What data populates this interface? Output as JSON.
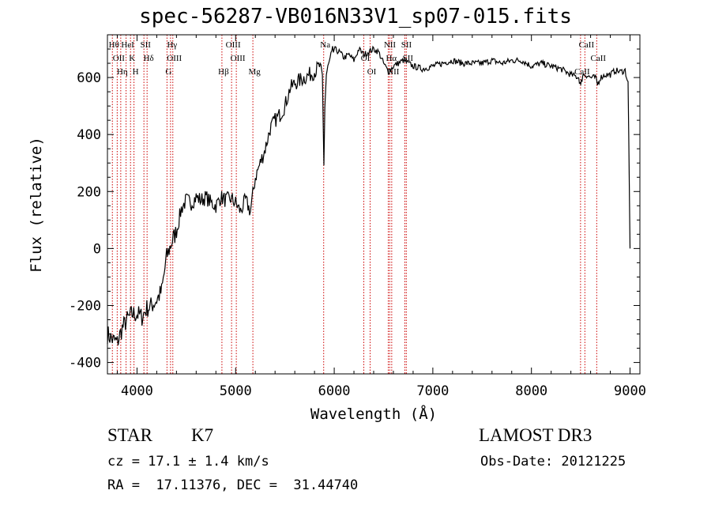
{
  "chart_data": {
    "type": "line",
    "title": "spec-56287-VB016N33V1_sp07-015.fits",
    "xlabel": "Wavelength (Å)",
    "ylabel": "Flux (relative)",
    "xlim": [
      3700,
      9100
    ],
    "ylim": [
      -440,
      750
    ],
    "xticks": [
      4000,
      5000,
      6000,
      7000,
      8000,
      9000
    ],
    "yticks": [
      -400,
      -200,
      0,
      200,
      400,
      600
    ],
    "grid": false,
    "series": [
      {
        "x": [
          3700,
          3750,
          3800,
          3850,
          3900,
          3950,
          4000,
          4050,
          4100,
          4150,
          4200,
          4250,
          4300,
          4350,
          4400,
          4450,
          4500,
          4550,
          4600,
          4650,
          4700,
          4750,
          4800,
          4850,
          4900,
          4950,
          5000,
          5050,
          5100,
          5150,
          5200,
          5250,
          5300,
          5350,
          5400,
          5450,
          5500,
          5550,
          5600,
          5650,
          5700,
          5750,
          5800,
          5850,
          5880,
          5895,
          5905,
          5920,
          5950,
          6000,
          6050,
          6100,
          6150,
          6200,
          6250,
          6300,
          6350,
          6400,
          6450,
          6500,
          6550,
          6600,
          6650,
          6700,
          6750,
          6800,
          6900,
          7000,
          7100,
          7200,
          7300,
          7400,
          7500,
          7600,
          7700,
          7800,
          7900,
          8000,
          8100,
          8200,
          8300,
          8400,
          8480,
          8500,
          8520,
          8550,
          8600,
          8650,
          8670,
          8700,
          8750,
          8800,
          8850,
          8900,
          8950,
          8980,
          9000
        ],
        "y": [
          -300,
          -320,
          -330,
          -280,
          -250,
          -230,
          -230,
          -240,
          -210,
          -200,
          -180,
          -150,
          -30,
          20,
          60,
          140,
          170,
          160,
          180,
          170,
          180,
          160,
          150,
          180,
          170,
          175,
          160,
          130,
          170,
          130,
          250,
          300,
          350,
          420,
          450,
          470,
          500,
          560,
          580,
          590,
          600,
          610,
          620,
          640,
          600,
          300,
          500,
          610,
          650,
          700,
          690,
          670,
          680,
          660,
          700,
          680,
          690,
          700,
          690,
          650,
          620,
          640,
          650,
          660,
          650,
          640,
          630,
          640,
          650,
          660,
          650,
          650,
          650,
          660,
          650,
          660,
          660,
          640,
          650,
          640,
          630,
          610,
          600,
          570,
          610,
          610,
          600,
          600,
          575,
          600,
          610,
          610,
          625,
          620,
          625,
          580,
          0
        ]
      }
    ],
    "line_markers": [
      {
        "wl": 3750,
        "label": "Hθ"
      },
      {
        "wl": 3799,
        "label": "OII"
      },
      {
        "wl": 3835,
        "label": "Hη"
      },
      {
        "wl": 3889,
        "label": "HeI"
      },
      {
        "wl": 3934,
        "label": "K"
      },
      {
        "wl": 3969,
        "label": "H"
      },
      {
        "wl": 4070,
        "label": "SII"
      },
      {
        "wl": 4102,
        "label": "Hδ"
      },
      {
        "wl": 4304,
        "label": "G"
      },
      {
        "wl": 4340,
        "label": "Hγ"
      },
      {
        "wl": 4363,
        "label": "OIII"
      },
      {
        "wl": 4861,
        "label": "Hβ"
      },
      {
        "wl": 4959,
        "label": "OIII"
      },
      {
        "wl": 5007,
        "label": "OIII"
      },
      {
        "wl": 5175,
        "label": "Mg"
      },
      {
        "wl": 5893,
        "label": "Na"
      },
      {
        "wl": 6300,
        "label": "OI"
      },
      {
        "wl": 6364,
        "label": "OI"
      },
      {
        "wl": 6548,
        "label": "NII"
      },
      {
        "wl": 6563,
        "label": "Hα"
      },
      {
        "wl": 6583,
        "label": "NII"
      },
      {
        "wl": 6716,
        "label": "SII"
      },
      {
        "wl": 6731,
        "label": "SII"
      },
      {
        "wl": 8498,
        "label": "CaII"
      },
      {
        "wl": 8542,
        "label": "CaII"
      },
      {
        "wl": 8662,
        "label": "CaII"
      }
    ]
  },
  "info": {
    "class_label": "STAR",
    "subclass": "K7",
    "survey": "LAMOST DR3",
    "redshift": "cz = 17.1 ± 1.4 km/s",
    "obs_date": "Obs-Date: 20121225",
    "coords": "RA =  17.11376, DEC =  31.44740"
  },
  "colors": {
    "spectrum": "#000000",
    "marker_lines": "#cc0000",
    "axes": "#000000"
  }
}
